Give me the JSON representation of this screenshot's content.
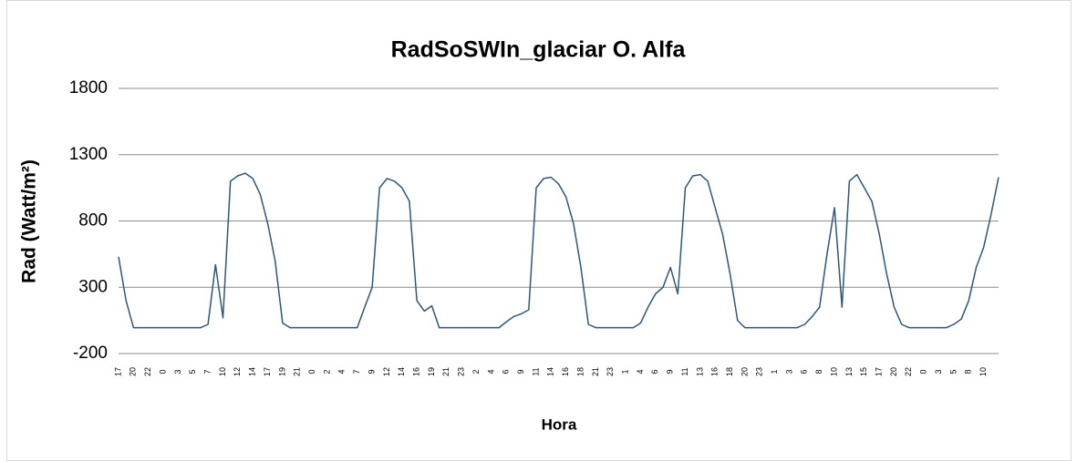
{
  "chart_data": {
    "type": "line",
    "title": "RadSoSWIn_glaciar O. Alfa",
    "x_label": "Hora",
    "y_label": "Rad (Watt/m²)",
    "color": "#2b5783",
    "grid": true,
    "ylim": [
      -200,
      1800
    ],
    "yticks": [
      -200,
      300,
      800,
      1300,
      1800
    ],
    "categories": [
      "17",
      null,
      "20",
      null,
      "22",
      null,
      "0",
      null,
      "3",
      null,
      "5",
      null,
      "7",
      null,
      "10",
      null,
      "12",
      null,
      "14",
      null,
      "17",
      null,
      "19",
      null,
      "21",
      null,
      "0",
      null,
      "2",
      null,
      "4",
      null,
      "7",
      null,
      "9",
      null,
      "12",
      null,
      "14",
      null,
      "16",
      null,
      "19",
      null,
      "21",
      null,
      "23",
      null,
      "2",
      null,
      "4",
      null,
      "6",
      null,
      "9",
      null,
      "11",
      null,
      "14",
      null,
      "16",
      null,
      "18",
      null,
      "21",
      null,
      "23",
      null,
      "1",
      null,
      "4",
      null,
      "6",
      null,
      "9",
      null,
      "11",
      null,
      "13",
      null,
      "16",
      null,
      "18",
      null,
      "20",
      null,
      "23",
      null,
      "1",
      null,
      "3",
      null,
      "6",
      null,
      "8",
      null,
      "10",
      null,
      "13",
      null,
      "15",
      null,
      "17",
      null,
      "20",
      null,
      "22",
      null,
      "0",
      null,
      "3",
      null,
      "5",
      null,
      "8",
      null,
      "10",
      null,
      null
    ],
    "values": [
      530,
      200,
      -5,
      -5,
      -5,
      -5,
      -5,
      -5,
      -5,
      -5,
      -5,
      -5,
      20,
      470,
      70,
      1100,
      1140,
      1160,
      1120,
      1000,
      780,
      500,
      30,
      -5,
      -5,
      -5,
      -5,
      -5,
      -5,
      -5,
      -5,
      -5,
      -5,
      150,
      300,
      1050,
      1120,
      1100,
      1050,
      950,
      200,
      120,
      160,
      -5,
      -5,
      -5,
      -5,
      -5,
      -5,
      -5,
      -5,
      -5,
      40,
      80,
      100,
      130,
      1050,
      1120,
      1130,
      1080,
      980,
      780,
      450,
      20,
      -5,
      -5,
      -5,
      -5,
      -5,
      -5,
      30,
      150,
      250,
      300,
      450,
      250,
      1050,
      1140,
      1150,
      1100,
      900,
      700,
      400,
      50,
      -5,
      -5,
      -5,
      -5,
      -5,
      -5,
      -5,
      -5,
      20,
      80,
      150,
      550,
      900,
      150,
      1100,
      1150,
      1050,
      950,
      700,
      400,
      150,
      20,
      -5,
      -5,
      -5,
      -5,
      -5,
      -5,
      20,
      60,
      200,
      450,
      600,
      850,
      1130
    ]
  }
}
